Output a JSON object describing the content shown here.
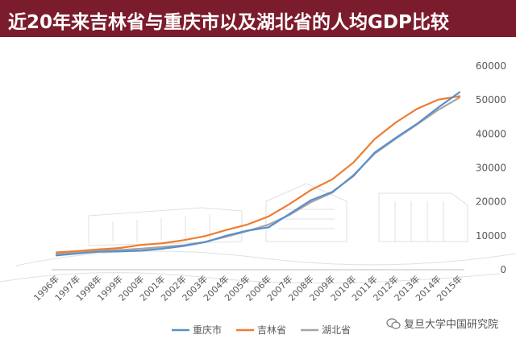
{
  "title": "近20年来吉林省与重庆市以及湖北省的人均GDP比较",
  "watermark": "复旦大学中国研究院",
  "colors": {
    "title_bg": "#7b1c2c",
    "chongqing": "#5b8fc9",
    "jilin": "#ed7d31",
    "hubei": "#a5a5a5"
  },
  "chart_data": {
    "type": "line",
    "title": "近20年来吉林省与重庆市以及湖北省的人均GDP比较",
    "xlabel": "",
    "ylabel": "",
    "ylim": [
      0,
      60000
    ],
    "yticks": [
      0,
      10000,
      20000,
      30000,
      40000,
      50000,
      60000
    ],
    "categories": [
      "1996年",
      "1997年",
      "1998年",
      "1999年",
      "2000年",
      "2001年",
      "2002年",
      "2003年",
      "2004年",
      "2005年",
      "2006年",
      "2007年",
      "2008年",
      "2009年",
      "2010年",
      "2011年",
      "2012年",
      "2013年",
      "2014年",
      "2015年"
    ],
    "grid": false,
    "legend_position": "bottom",
    "series": [
      {
        "name": "重庆市",
        "color": "#5b8fc9",
        "values": [
          4200,
          4800,
          5300,
          5400,
          5600,
          6200,
          7000,
          8100,
          10000,
          11500,
          12500,
          16500,
          20500,
          22900,
          27600,
          34500,
          38900,
          43000,
          47800,
          52300
        ]
      },
      {
        "name": "吉林省",
        "color": "#ed7d31",
        "values": [
          5100,
          5500,
          6000,
          6400,
          7300,
          7800,
          8700,
          9900,
          11700,
          13300,
          15700,
          19400,
          23500,
          26600,
          31600,
          38500,
          43400,
          47400,
          50100,
          51100
        ]
      },
      {
        "name": "湖北省",
        "color": "#a5a5a5",
        "values": [
          4600,
          5200,
          5600,
          5800,
          6200,
          6700,
          7200,
          8200,
          9700,
          11400,
          13300,
          16200,
          19900,
          22700,
          27900,
          34200,
          38600,
          42800,
          47100,
          50700
        ]
      }
    ]
  }
}
